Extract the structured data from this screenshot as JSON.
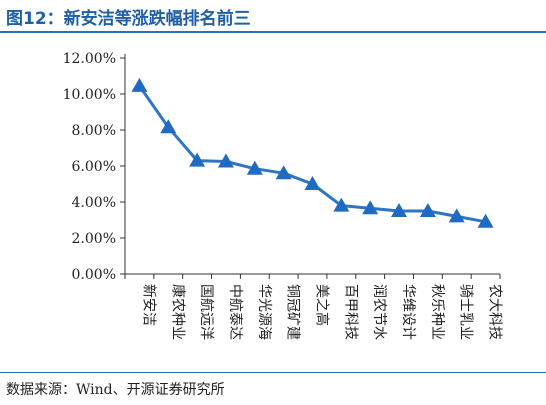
{
  "title": "图12：新安洁等涨跌幅排名前三",
  "source": "数据来源：Wind、开源证券研究所",
  "colors": {
    "line": "#2e75c5",
    "marker": "#1f6bc4",
    "title": "#1f5fa8",
    "rule": "#2f6fb0"
  },
  "chart_data": {
    "type": "line",
    "marker": "triangle",
    "categories": [
      "新安洁",
      "康农种业",
      "国航远洋",
      "中航泰达",
      "华光源海",
      "铜冠矿建",
      "美之高",
      "百甲科技",
      "润农节水",
      "华维设计",
      "秋乐种业",
      "骑士乳业",
      "农大科技"
    ],
    "values": [
      10.45,
      8.15,
      6.3,
      6.25,
      5.85,
      5.6,
      5.0,
      3.8,
      3.65,
      3.5,
      3.5,
      3.2,
      2.9
    ],
    "y_ticks": [
      "0.00%",
      "2.00%",
      "4.00%",
      "6.00%",
      "8.00%",
      "10.00%",
      "12.00%"
    ],
    "ylim": [
      0,
      12
    ],
    "y_unit": "%",
    "grid": false,
    "legend": "none"
  }
}
